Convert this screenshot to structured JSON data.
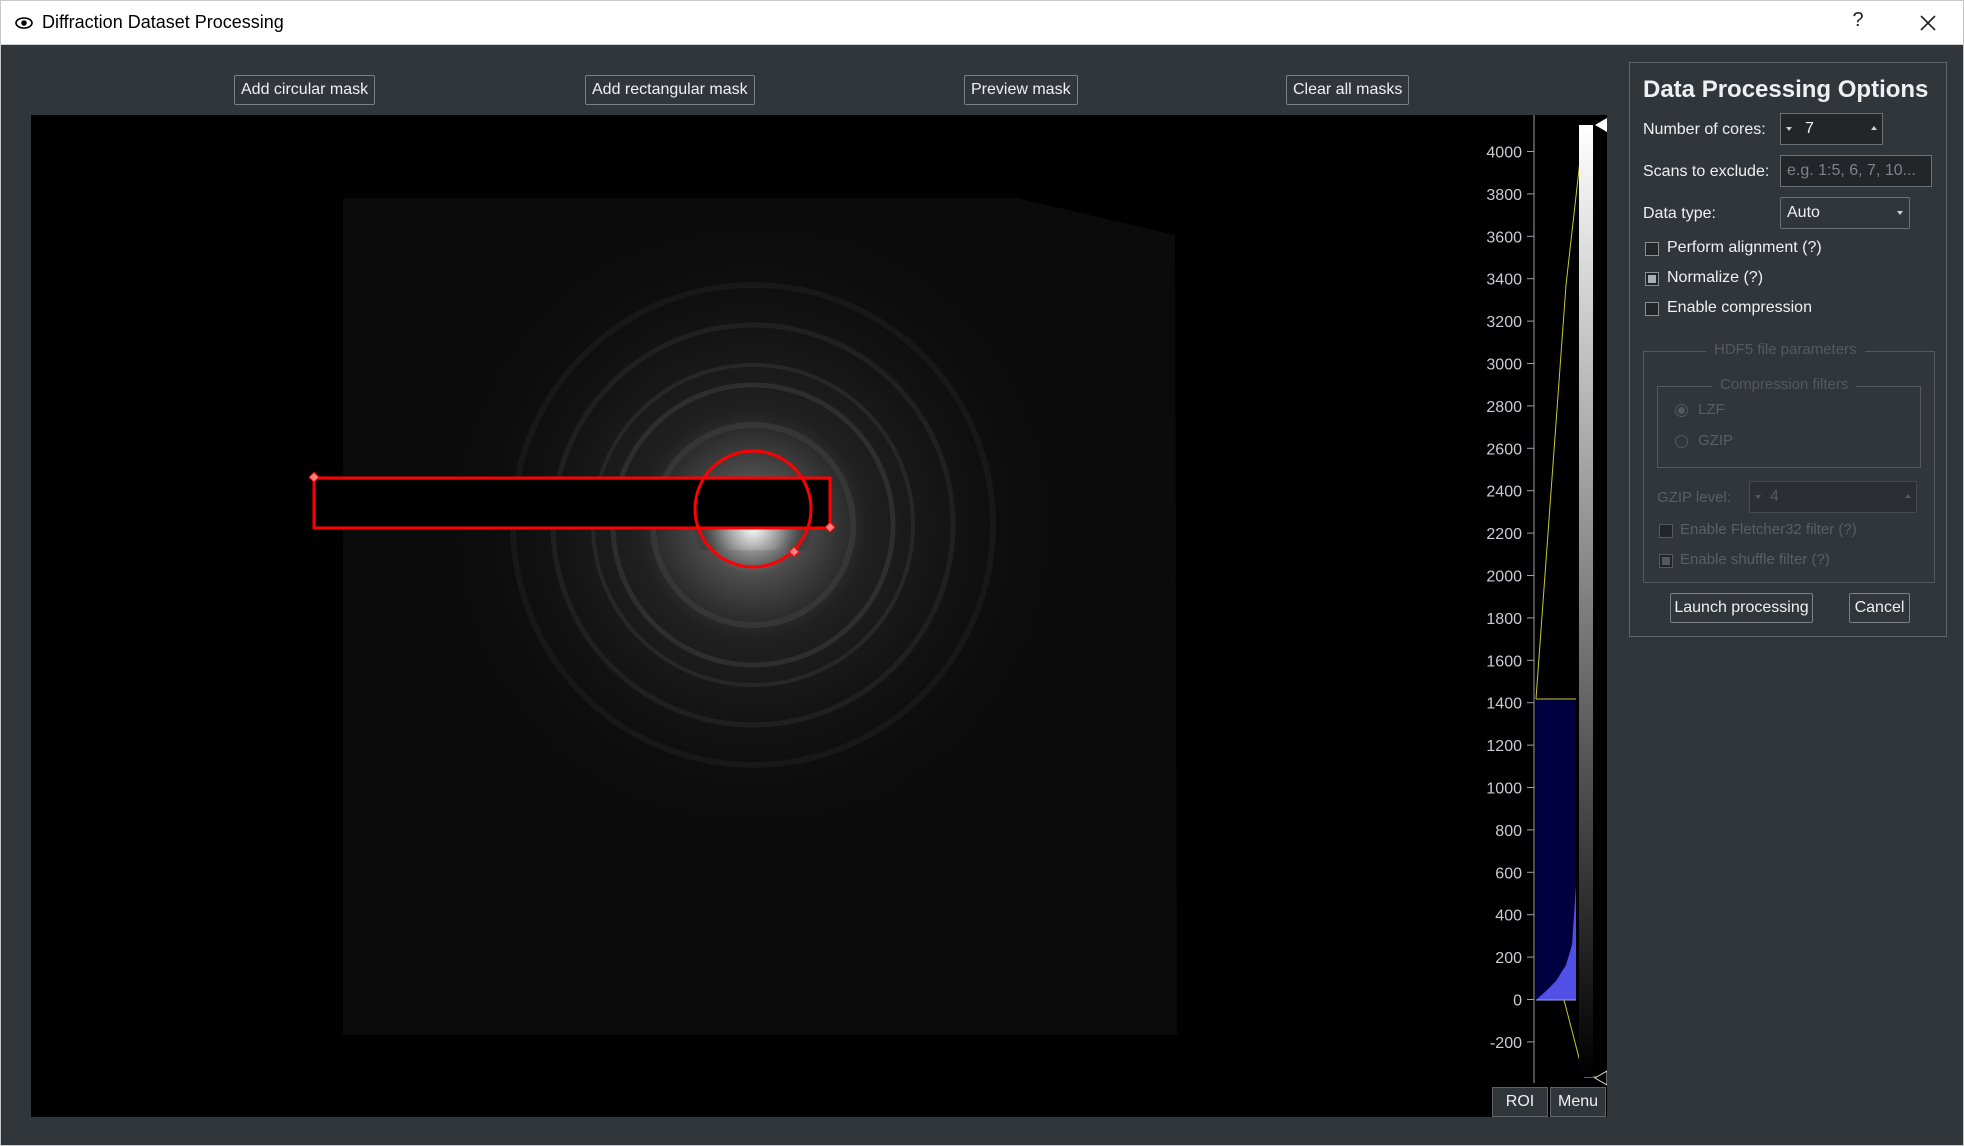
{
  "window": {
    "title": "Diffraction Dataset Processing",
    "help_label": "?"
  },
  "toolbar": {
    "add_circular_mask": "Add circular mask",
    "add_rectangular_mask": "Add rectangular mask",
    "preview_mask": "Preview mask",
    "clear_all_masks": "Clear all masks"
  },
  "histogram": {
    "ticks": [
      "4000",
      "3800",
      "3600",
      "3400",
      "3200",
      "3000",
      "2800",
      "2600",
      "2400",
      "2200",
      "2000",
      "1800",
      "1600",
      "1400",
      "1200",
      "1000",
      "800",
      "600",
      "400",
      "200",
      "0",
      "-200"
    ],
    "roi_label": "ROI",
    "menu_label": "Menu"
  },
  "options": {
    "title": "Data Processing Options",
    "cores_label": "Number of cores:",
    "cores_value": "7",
    "scans_label": "Scans to exclude:",
    "scans_placeholder": "e.g. 1:5, 6, 7, 10...",
    "datatype_label": "Data type:",
    "datatype_value": "Auto",
    "perform_alignment": "Perform alignment (?)",
    "normalize": "Normalize (?)",
    "enable_compression": "Enable compression",
    "hdf5_group": "HDF5 file parameters",
    "compression_group": "Compression filters",
    "lzf": "LZF",
    "gzip": "GZIP",
    "gzip_level_label": "GZIP level:",
    "gzip_level_value": "4",
    "fletcher": "Enable Fletcher32 filter (?)",
    "shuffle": "Enable shuffle filter (?)",
    "launch": "Launch processing",
    "cancel": "Cancel"
  },
  "colors": {
    "mask_outline": "#ff0000",
    "histogram_fill": "#000040",
    "histogram_peak": "#5050e6",
    "level_line": "#c8c832"
  }
}
